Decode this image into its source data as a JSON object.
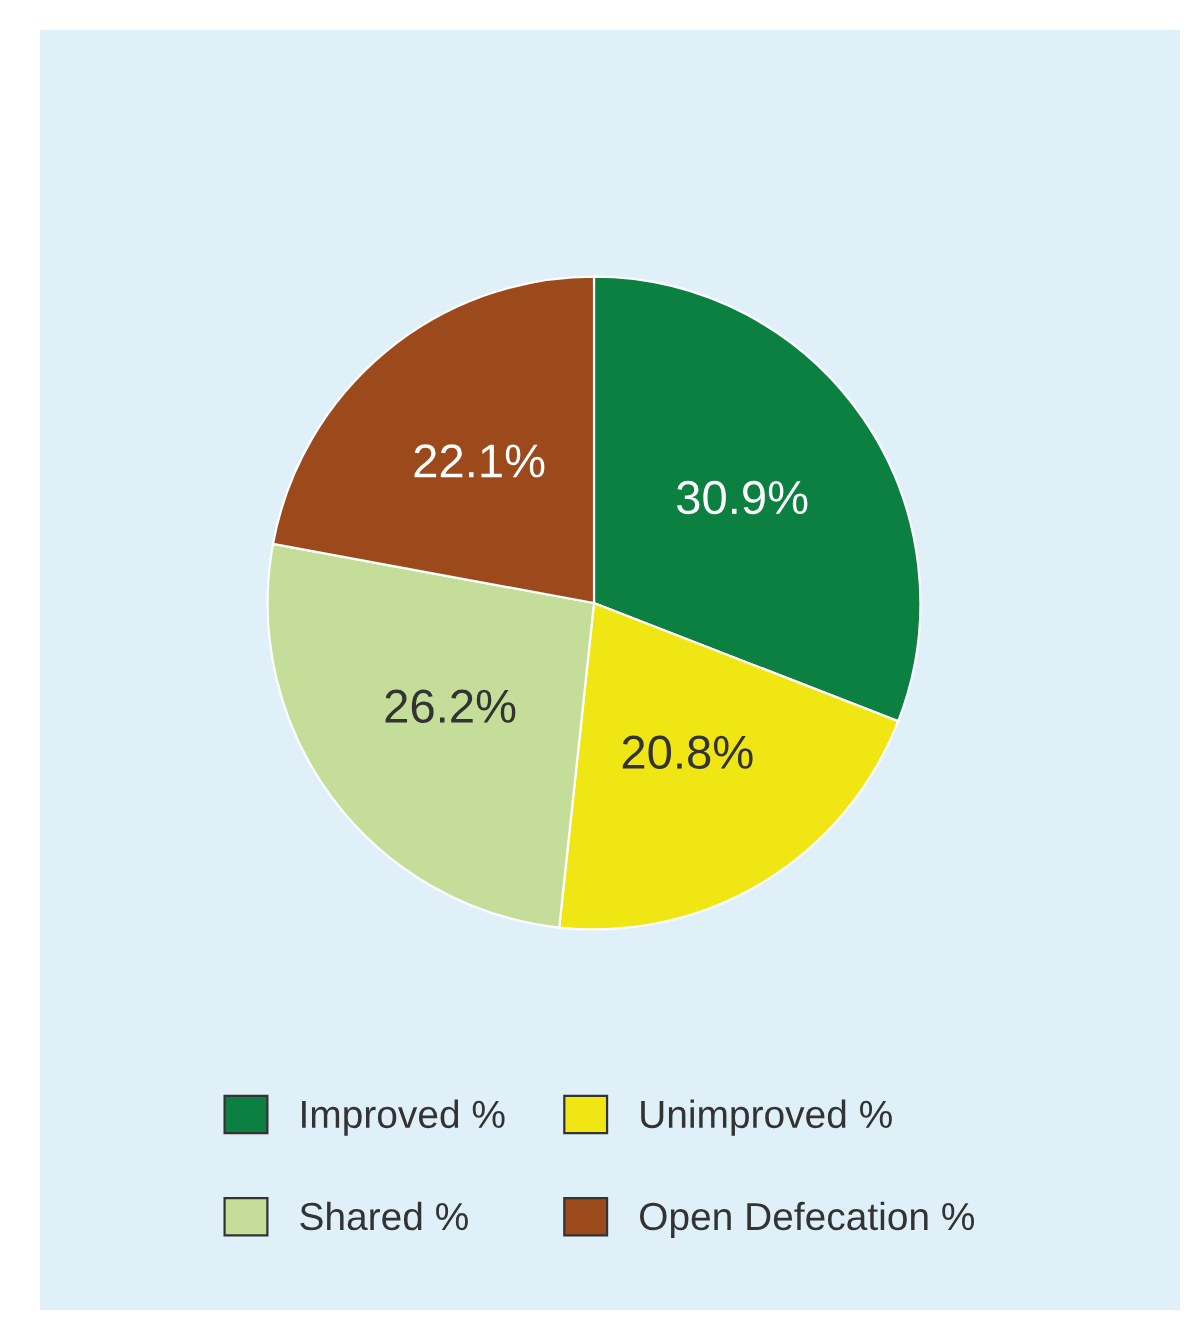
{
  "chart_data": {
    "type": "pie",
    "categories": [
      "Improved %",
      "Unimproved %",
      "Shared %",
      "Open Defecation %"
    ],
    "values": [
      30.9,
      20.8,
      26.2,
      22.1
    ],
    "colors": [
      "#0b8040",
      "#f0e614",
      "#c4de9a",
      "#9c4a1c"
    ],
    "value_labels": [
      "30.9%",
      "20.8%",
      "26.2%",
      "22.1%"
    ],
    "legend": "bottom"
  }
}
